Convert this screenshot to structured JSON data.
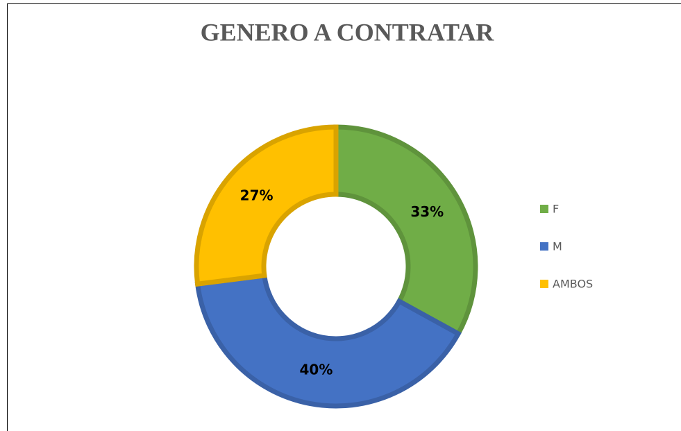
{
  "chart_data": {
    "type": "donut",
    "title": "GENERO A CONTRATAR",
    "categories": [
      "F",
      "M",
      "AMBOS"
    ],
    "values": [
      33,
      40,
      27
    ],
    "value_labels": [
      "33%",
      "40%",
      "27%"
    ],
    "colors": [
      "#70ad47",
      "#4472c4",
      "#ffc000"
    ],
    "legend": "right"
  }
}
